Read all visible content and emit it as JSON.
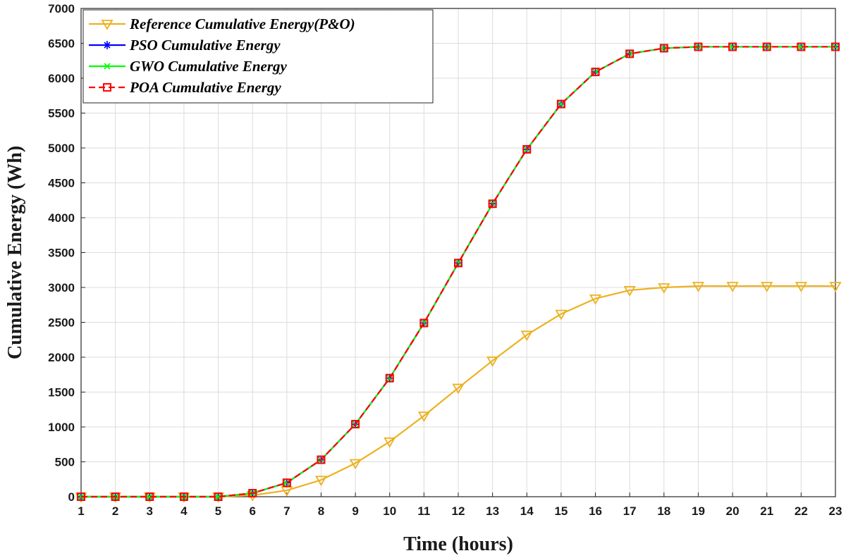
{
  "chart_data": {
    "type": "line",
    "title": "",
    "xlabel": "Time (hours)",
    "ylabel": "Cumulative Energy (Wh)",
    "xlim": [
      1,
      23
    ],
    "ylim": [
      0,
      7000
    ],
    "x": [
      1,
      2,
      3,
      4,
      5,
      6,
      7,
      8,
      9,
      10,
      11,
      12,
      13,
      14,
      15,
      16,
      17,
      18,
      19,
      20,
      21,
      22,
      23
    ],
    "x_ticks": [
      "1",
      "2",
      "3",
      "4",
      "5",
      "6",
      "7",
      "8",
      "9",
      "10",
      "11",
      "12",
      "13",
      "14",
      "15",
      "16",
      "17",
      "18",
      "19",
      "20",
      "21",
      "22",
      "23"
    ],
    "y_ticks": [
      "0",
      "500",
      "1000",
      "1500",
      "2000",
      "2500",
      "3000",
      "3500",
      "4000",
      "4500",
      "5000",
      "5500",
      "6000",
      "6500",
      "7000"
    ],
    "grid": true,
    "legend_position": "top-left",
    "series": [
      {
        "name": "Reference Cumulative Energy(P&O)",
        "color": "#EDB120",
        "marker": "triangle-down",
        "line_style": "solid",
        "values": [
          0,
          0,
          0,
          0,
          0,
          20,
          90,
          240,
          480,
          790,
          1160,
          1560,
          1950,
          2320,
          2620,
          2840,
          2960,
          3000,
          3020,
          3020,
          3020,
          3020,
          3020
        ]
      },
      {
        "name": "PSO Cumulative Energy",
        "color": "#0000ff",
        "marker": "asterisk",
        "line_style": "solid",
        "values": [
          0,
          0,
          0,
          0,
          0,
          50,
          200,
          530,
          1040,
          1700,
          2490,
          3350,
          4200,
          4980,
          5630,
          6090,
          6350,
          6430,
          6450,
          6450,
          6450,
          6450,
          6450
        ]
      },
      {
        "name": "GWO Cumulative Energy",
        "color": "#00ff00",
        "marker": "x",
        "line_style": "solid",
        "values": [
          0,
          0,
          0,
          0,
          0,
          50,
          200,
          530,
          1040,
          1700,
          2490,
          3350,
          4200,
          4980,
          5630,
          6090,
          6350,
          6430,
          6450,
          6450,
          6450,
          6450,
          6450
        ]
      },
      {
        "name": "POA Cumulative Energy",
        "color": "#ff0000",
        "marker": "square",
        "line_style": "dashed",
        "values": [
          0,
          0,
          0,
          0,
          0,
          50,
          200,
          530,
          1040,
          1700,
          2490,
          3350,
          4200,
          4980,
          5630,
          6090,
          6350,
          6430,
          6450,
          6450,
          6450,
          6450,
          6450
        ]
      }
    ]
  }
}
